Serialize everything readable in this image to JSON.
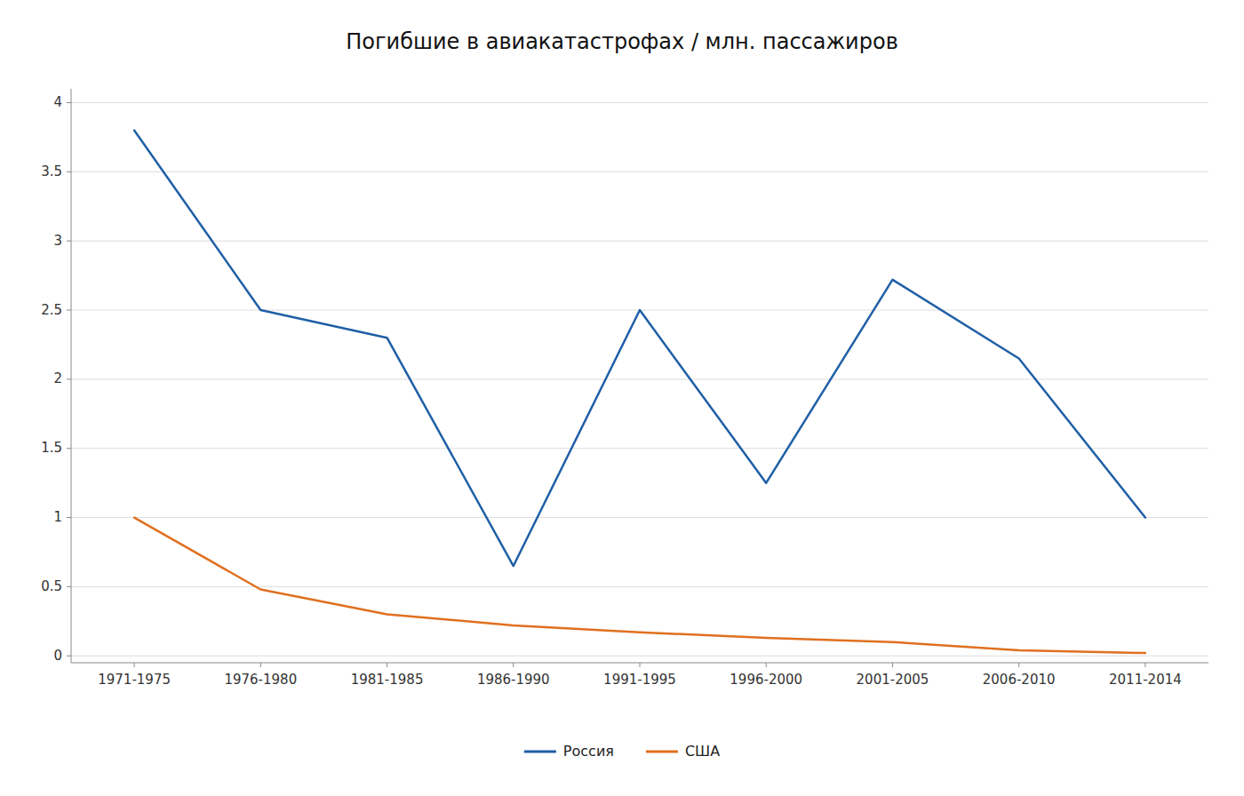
{
  "chart_data": {
    "type": "line",
    "title": "Погибшие в авиакатастрофах / млн. пассажиров",
    "categories": [
      "1971-1975",
      "1976-1980",
      "1981-1985",
      "1986-1990",
      "1991-1995",
      "1996-2000",
      "2001-2005",
      "2006-2010",
      "2011-2014"
    ],
    "series": [
      {
        "name": "Россия",
        "color": "#1f5fa6",
        "values": [
          3.8,
          2.5,
          2.3,
          0.65,
          2.5,
          1.25,
          2.72,
          2.15,
          1.0
        ]
      },
      {
        "name": "США",
        "color": "#e07020",
        "values": [
          1.0,
          0.48,
          0.3,
          0.22,
          0.17,
          0.13,
          0.1,
          0.04,
          0.02
        ]
      }
    ],
    "ylim": [
      -0.05,
      4.1
    ],
    "yticks": [
      0,
      0.5,
      1,
      1.5,
      2,
      2.5,
      3,
      3.5,
      4
    ],
    "grid": true,
    "legend": "bottom"
  }
}
